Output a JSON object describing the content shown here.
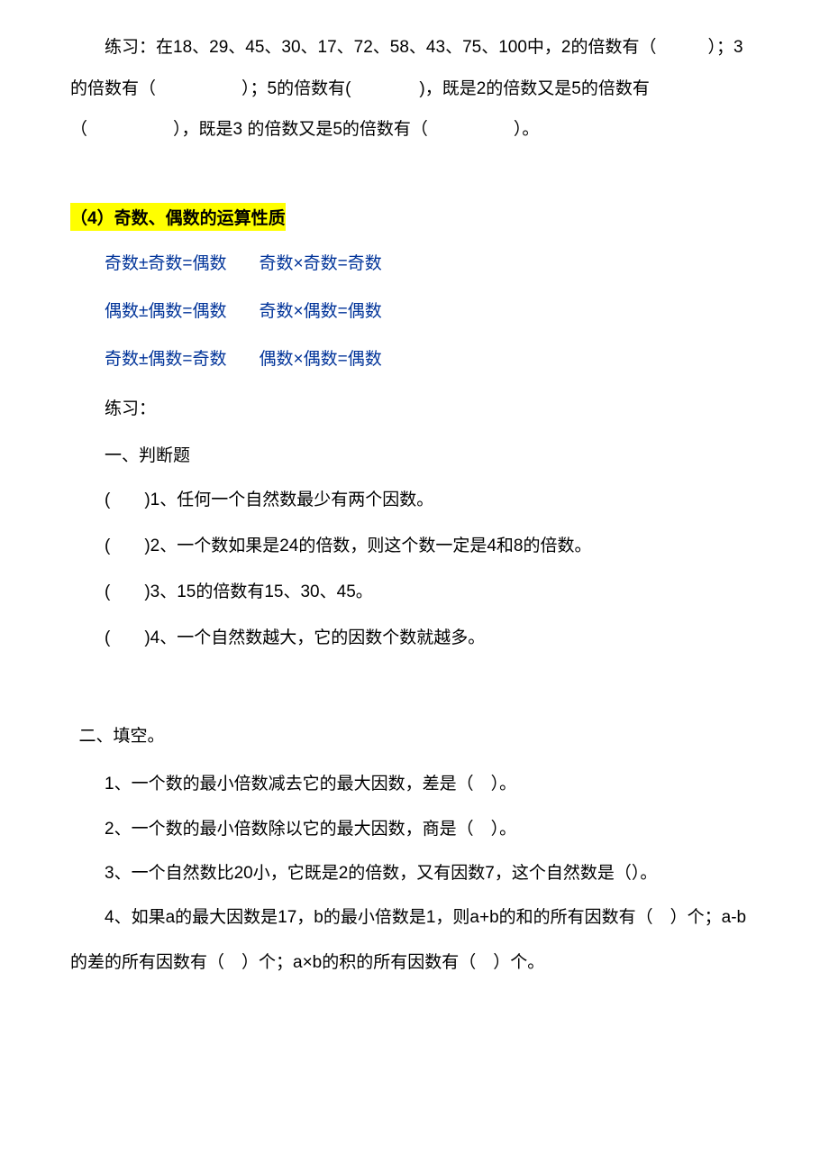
{
  "colors": {
    "text": "#000000",
    "highlight_bg": "#ffff00",
    "rule_text": "#003399",
    "background": "#ffffff"
  },
  "typography": {
    "body_fontsize": 19,
    "heading_fontweight": "bold",
    "line_height_body": 2.4,
    "line_height_rules": 2.8
  },
  "exercise_intro": "练习：在18、29、45、30、17、72、58、43、75、100中，2的倍数有（　　　）；3的倍数有（　　　　　）；5的倍数有(　　　　)，既是2的倍数又是5的倍数有（　　　　　），既是3 的倍数又是5的倍数有（　　　　　）。",
  "section_heading": "（4）奇数、偶数的运算性质",
  "rules": {
    "r1_left": "奇数±奇数=偶数",
    "r1_right": "奇数×奇数=奇数",
    "r2_left": "偶数±偶数=偶数",
    "r2_right": "奇数×偶数=偶数",
    "r3_left": "奇数±偶数=奇数",
    "r3_right": "偶数×偶数=偶数"
  },
  "practice_label": "练习：",
  "judge": {
    "heading": "一、判断题",
    "items": [
      "(　　)1、任何一个自然数最少有两个因数。",
      "(　　)2、一个数如果是24的倍数，则这个数一定是4和8的倍数。",
      "(　　)3、15的倍数有15、30、45。",
      "(　　)4、一个自然数越大，它的因数个数就越多。"
    ]
  },
  "fill": {
    "heading": "二、填空。",
    "items": [
      "1、一个数的最小倍数减去它的最大因数，差是（　）。",
      "2、一个数的最小倍数除以它的最大因数，商是（　）。",
      "3、一个自然数比20小，它既是2的倍数，又有因数7，这个自然数是（）。",
      "4、如果a的最大因数是17，b的最小倍数是1，则a+b的和的所有因数有（　）个；a-b的差的所有因数有（　）个；a×b的积的所有因数有（　）个。"
    ]
  }
}
